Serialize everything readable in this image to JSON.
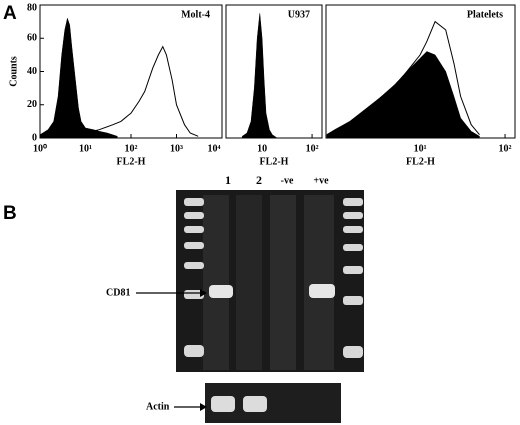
{
  "panel_labels": [
    "A",
    "B"
  ],
  "chart_data": [
    {
      "type": "area",
      "title": "Molt-4",
      "xlabel": "FL2-H",
      "ylabel": "Counts",
      "log_x": true,
      "xlim": [
        1,
        10000
      ],
      "xticks": [
        {
          "value": 1,
          "label": "10⁰"
        },
        {
          "value": 10,
          "label": "10¹"
        },
        {
          "value": 100,
          "label": "10²"
        },
        {
          "value": 1000,
          "label": "10³"
        },
        {
          "value": 10000,
          "label": "10⁴"
        }
      ],
      "ylim": [
        0,
        80
      ],
      "yticks": [
        0,
        20,
        40,
        60,
        80
      ],
      "series": [
        {
          "color": "#000000",
          "filled": true,
          "x": [
            1,
            1.5,
            2,
            2.5,
            3,
            3.5,
            4,
            4.5,
            5,
            6,
            7,
            8,
            10,
            15,
            20,
            30,
            50
          ],
          "values": [
            2,
            5,
            10,
            25,
            50,
            65,
            72,
            68,
            55,
            35,
            18,
            10,
            6,
            5,
            4,
            3,
            1
          ]
        },
        {
          "color": "#000000",
          "filled": false,
          "x": [
            10,
            20,
            40,
            60,
            100,
            150,
            200,
            300,
            400,
            500,
            600,
            800,
            1000,
            1500,
            2000,
            3000
          ],
          "values": [
            3,
            5,
            8,
            10,
            15,
            22,
            28,
            42,
            50,
            55,
            50,
            35,
            20,
            8,
            3,
            1
          ]
        }
      ]
    },
    {
      "type": "area",
      "title": "U937",
      "xlabel": "FL2-H",
      "log_x": true,
      "xlim": [
        1.9,
        158
      ],
      "xticks": [
        10,
        {
          "value": 100,
          "label": "10²"
        }
      ],
      "ylim": [
        0,
        80
      ],
      "series": [
        {
          "color": "#000000",
          "filled": true,
          "x": [
            4,
            5,
            6,
            7,
            8,
            9,
            10,
            11,
            12,
            14,
            16,
            20
          ],
          "values": [
            1,
            3,
            10,
            30,
            60,
            75,
            60,
            35,
            15,
            5,
            2,
            0
          ]
        }
      ]
    },
    {
      "type": "area",
      "title": "Platelets",
      "xlabel": "FL2-H",
      "log_x": true,
      "xlim": [
        0.78,
        131
      ],
      "xticks": [
        {
          "value": 10,
          "label": "10¹"
        },
        {
          "value": 100,
          "label": "10²"
        }
      ],
      "ylim": [
        0,
        80
      ],
      "series": [
        {
          "color": "#000000",
          "filled": true,
          "x": [
            0.8,
            1,
            1.5,
            2,
            3,
            5,
            7,
            10,
            12,
            15,
            20,
            25,
            30,
            40,
            50
          ],
          "values": [
            2,
            5,
            10,
            15,
            22,
            32,
            40,
            48,
            52,
            50,
            40,
            25,
            12,
            4,
            1
          ]
        },
        {
          "color": "#000000",
          "filled": false,
          "x": [
            0.8,
            1,
            1.5,
            2,
            3,
            5,
            7,
            10,
            12,
            15,
            20,
            25,
            30,
            40,
            50
          ],
          "values": [
            2,
            5,
            10,
            15,
            22,
            31,
            40,
            50,
            58,
            70,
            65,
            45,
            25,
            8,
            2
          ]
        }
      ]
    }
  ],
  "gel": {
    "lanes": [
      "1",
      "2",
      "-ve",
      "+ve"
    ],
    "band_label": "CD81",
    "control_label": "Actin"
  }
}
